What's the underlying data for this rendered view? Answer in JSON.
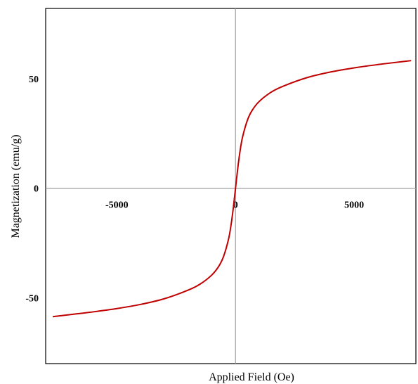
{
  "chart_data": {
    "type": "line",
    "title": "",
    "xlabel": "Applied Field (Oe)",
    "ylabel": "Magnetization (emu/g)",
    "xlim": [
      -8000,
      7600
    ],
    "ylim": [
      -80,
      82
    ],
    "x_ticks": [
      -5000,
      0,
      5000
    ],
    "x_tick_labels": [
      "-5000",
      "0",
      "5000"
    ],
    "y_ticks": [
      -50,
      0,
      50
    ],
    "y_tick_labels": [
      "-50",
      "0",
      "50"
    ],
    "grid": false,
    "legend": "none",
    "series": [
      {
        "color": "#c00000",
        "x": [
          -7700,
          -7000,
          -6000,
          -5000,
          -4000,
          -3000,
          -2000,
          -1500,
          -1000,
          -700,
          -500,
          -300,
          -200,
          -100,
          0,
          100,
          200,
          300,
          500,
          700,
          1000,
          1500,
          2000,
          3000,
          4000,
          5000,
          6000,
          7000,
          7400
        ],
        "y": [
          -58.6,
          -57.7,
          -56.4,
          -54.9,
          -53.0,
          -50.4,
          -46.5,
          -43.8,
          -39.6,
          -35.5,
          -31.0,
          -23.5,
          -17.6,
          -9.6,
          0.0,
          9.6,
          17.6,
          23.5,
          31.0,
          35.5,
          39.6,
          43.8,
          46.5,
          50.4,
          53.0,
          54.9,
          56.4,
          57.7,
          58.2
        ]
      }
    ]
  }
}
